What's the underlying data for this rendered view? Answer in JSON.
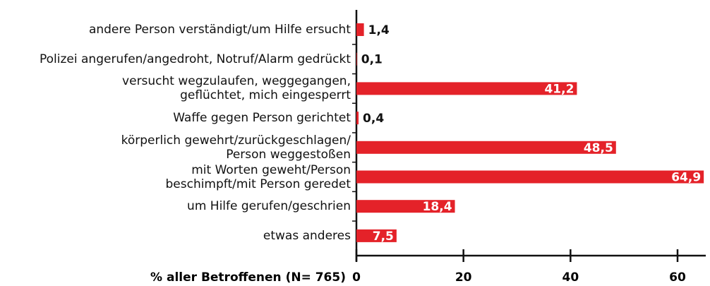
{
  "chart_data": {
    "type": "hbar",
    "categories": [
      "andere Person verständigt/um Hilfe ersucht",
      "Polizei angerufen/angedroht, Notruf/Alarm gedrückt",
      "versucht wegzulaufen, weggegangen,\ngeflüchtet, mich eingesperrt",
      "Waffe gegen Person gerichtet",
      "körperlich gewehrt/zurückgeschlagen/\nPerson weggestoßen",
      "mit Worten geweht/Person\nbeschimpft/mit Person geredet",
      "um Hilfe gerufen/geschrien",
      "etwas anderes"
    ],
    "values": [
      1.4,
      0.1,
      41.2,
      0.4,
      48.5,
      64.9,
      18.4,
      7.5
    ],
    "value_labels": [
      "1,4",
      "0,1",
      "41,2",
      "0,4",
      "48,5",
      "64,9",
      "18,4",
      "7,5"
    ],
    "color": "#e42229",
    "xlabel": "% aller Betroffenen (N= 765)",
    "xlim": [
      0,
      60
    ],
    "xticks": [
      0,
      20,
      40,
      60
    ]
  }
}
